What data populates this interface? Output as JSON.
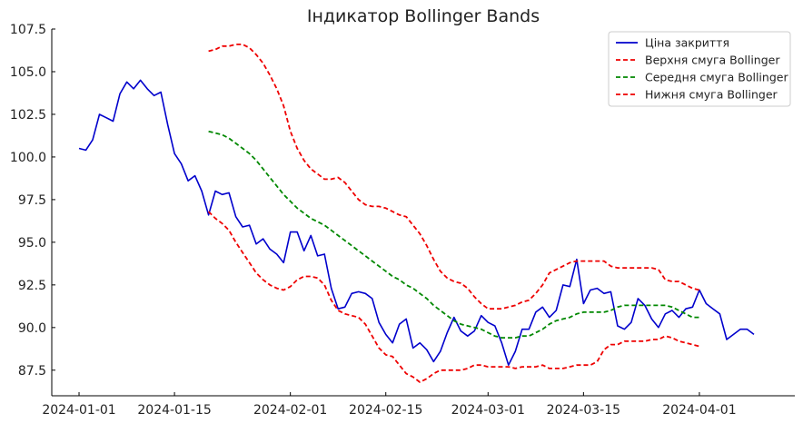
{
  "chart_data": {
    "type": "line",
    "title": "Індикатор Bollinger Bands",
    "xlabel": "",
    "ylabel": "",
    "xlim": [
      "2023-12-28",
      "2024-04-15"
    ],
    "ylim": [
      86.0,
      107.5
    ],
    "x_ticks": [
      "2024-01-01",
      "2024-01-15",
      "2024-02-01",
      "2024-02-15",
      "2024-03-01",
      "2024-03-15",
      "2024-04-01"
    ],
    "y_ticks": [
      87.5,
      90.0,
      92.5,
      95.0,
      97.5,
      100.0,
      102.5,
      105.0,
      107.5
    ],
    "y_tick_labels": [
      "87.5",
      "90.0",
      "92.5",
      "95.0",
      "97.5",
      "100.0",
      "102.5",
      "105.0",
      "107.5"
    ],
    "grid": false,
    "legend_position": "top-right",
    "series": [
      {
        "name": "Ціна закриття",
        "color": "#0000cc",
        "style": "solid",
        "x_start": "2024-01-01",
        "values": [
          100.5,
          100.4,
          101.0,
          102.5,
          102.3,
          102.1,
          103.7,
          104.4,
          104.0,
          104.5,
          104.0,
          103.6,
          103.8,
          101.9,
          100.2,
          99.6,
          98.6,
          98.9,
          98.0,
          96.6,
          98.0,
          97.8,
          97.9,
          96.5,
          95.9,
          96.0,
          94.9,
          95.2,
          94.6,
          94.3,
          93.8,
          95.6,
          95.6,
          94.5,
          95.4,
          94.2,
          94.3,
          92.3,
          91.1,
          91.2,
          92.0,
          92.1,
          92.0,
          91.7,
          90.3,
          89.6,
          89.1,
          90.2,
          90.5,
          88.8,
          89.1,
          88.7,
          88.0,
          88.6,
          89.7,
          90.6,
          89.8,
          89.5,
          89.8,
          90.7,
          90.3,
          90.1,
          89.1,
          87.8,
          88.6,
          89.9,
          89.9,
          90.9,
          91.2,
          90.6,
          91.0,
          92.5,
          92.4,
          94.0,
          91.4,
          92.2,
          92.3,
          92.0,
          92.1,
          90.1,
          89.9,
          90.3,
          91.7,
          91.3,
          90.5,
          90.0,
          90.8,
          91.0,
          90.6,
          91.1,
          91.2,
          92.2,
          91.4,
          91.1,
          90.8,
          89.3,
          89.6,
          89.9,
          89.9,
          89.6
        ]
      },
      {
        "name": "Верхня смуга Bollinger",
        "color": "#ee0000",
        "style": "dashed",
        "x_start": "2024-01-20",
        "values": [
          106.2,
          106.3,
          106.5,
          106.5,
          106.6,
          106.6,
          106.4,
          106.0,
          105.5,
          104.8,
          104.0,
          103.0,
          101.5,
          100.5,
          99.8,
          99.3,
          99.0,
          98.7,
          98.7,
          98.8,
          98.5,
          98.0,
          97.5,
          97.2,
          97.1,
          97.1,
          97.0,
          96.8,
          96.6,
          96.5,
          96.0,
          95.5,
          94.8,
          94.0,
          93.3,
          92.9,
          92.7,
          92.6,
          92.3,
          91.8,
          91.4,
          91.1,
          91.1,
          91.1,
          91.2,
          91.3,
          91.5,
          91.6,
          92.0,
          92.5,
          93.2,
          93.4,
          93.6,
          93.8,
          93.9,
          93.9,
          93.9,
          93.9,
          93.9,
          93.6,
          93.5,
          93.5,
          93.5,
          93.5,
          93.5,
          93.5,
          93.4,
          92.8,
          92.7,
          92.7,
          92.5,
          92.3,
          92.2
        ]
      },
      {
        "name": "Середня смуга Bollinger",
        "color": "#008800",
        "style": "dashed",
        "x_start": "2024-01-20",
        "values": [
          101.5,
          101.4,
          101.3,
          101.1,
          100.8,
          100.5,
          100.2,
          99.8,
          99.3,
          98.8,
          98.3,
          97.8,
          97.4,
          97.0,
          96.7,
          96.4,
          96.2,
          96.0,
          95.7,
          95.4,
          95.1,
          94.8,
          94.5,
          94.2,
          93.9,
          93.6,
          93.3,
          93.0,
          92.8,
          92.5,
          92.3,
          92.0,
          91.7,
          91.3,
          91.0,
          90.7,
          90.4,
          90.2,
          90.1,
          90.0,
          89.9,
          89.7,
          89.5,
          89.4,
          89.4,
          89.4,
          89.5,
          89.5,
          89.7,
          89.9,
          90.2,
          90.4,
          90.5,
          90.6,
          90.8,
          90.9,
          90.9,
          90.9,
          90.9,
          91.0,
          91.2,
          91.3,
          91.3,
          91.3,
          91.3,
          91.3,
          91.3,
          91.3,
          91.2,
          91.0,
          90.8,
          90.6,
          90.6
        ]
      },
      {
        "name": "Нижня смуга Bollinger",
        "color": "#ee0000",
        "style": "dashed",
        "x_start": "2024-01-20",
        "values": [
          96.8,
          96.4,
          96.1,
          95.7,
          95.0,
          94.4,
          93.8,
          93.2,
          92.8,
          92.5,
          92.3,
          92.2,
          92.4,
          92.8,
          93.0,
          93.0,
          92.9,
          92.5,
          91.6,
          91.0,
          90.8,
          90.7,
          90.6,
          90.2,
          89.5,
          88.8,
          88.4,
          88.3,
          87.8,
          87.3,
          87.1,
          86.8,
          87.0,
          87.3,
          87.5,
          87.5,
          87.5,
          87.5,
          87.6,
          87.8,
          87.8,
          87.7,
          87.7,
          87.7,
          87.7,
          87.6,
          87.7,
          87.7,
          87.7,
          87.8,
          87.6,
          87.6,
          87.6,
          87.7,
          87.8,
          87.8,
          87.8,
          88.0,
          88.7,
          89.0,
          89.0,
          89.2,
          89.2,
          89.2,
          89.2,
          89.3,
          89.3,
          89.5,
          89.4,
          89.2,
          89.1,
          89.0,
          88.9
        ]
      }
    ]
  }
}
